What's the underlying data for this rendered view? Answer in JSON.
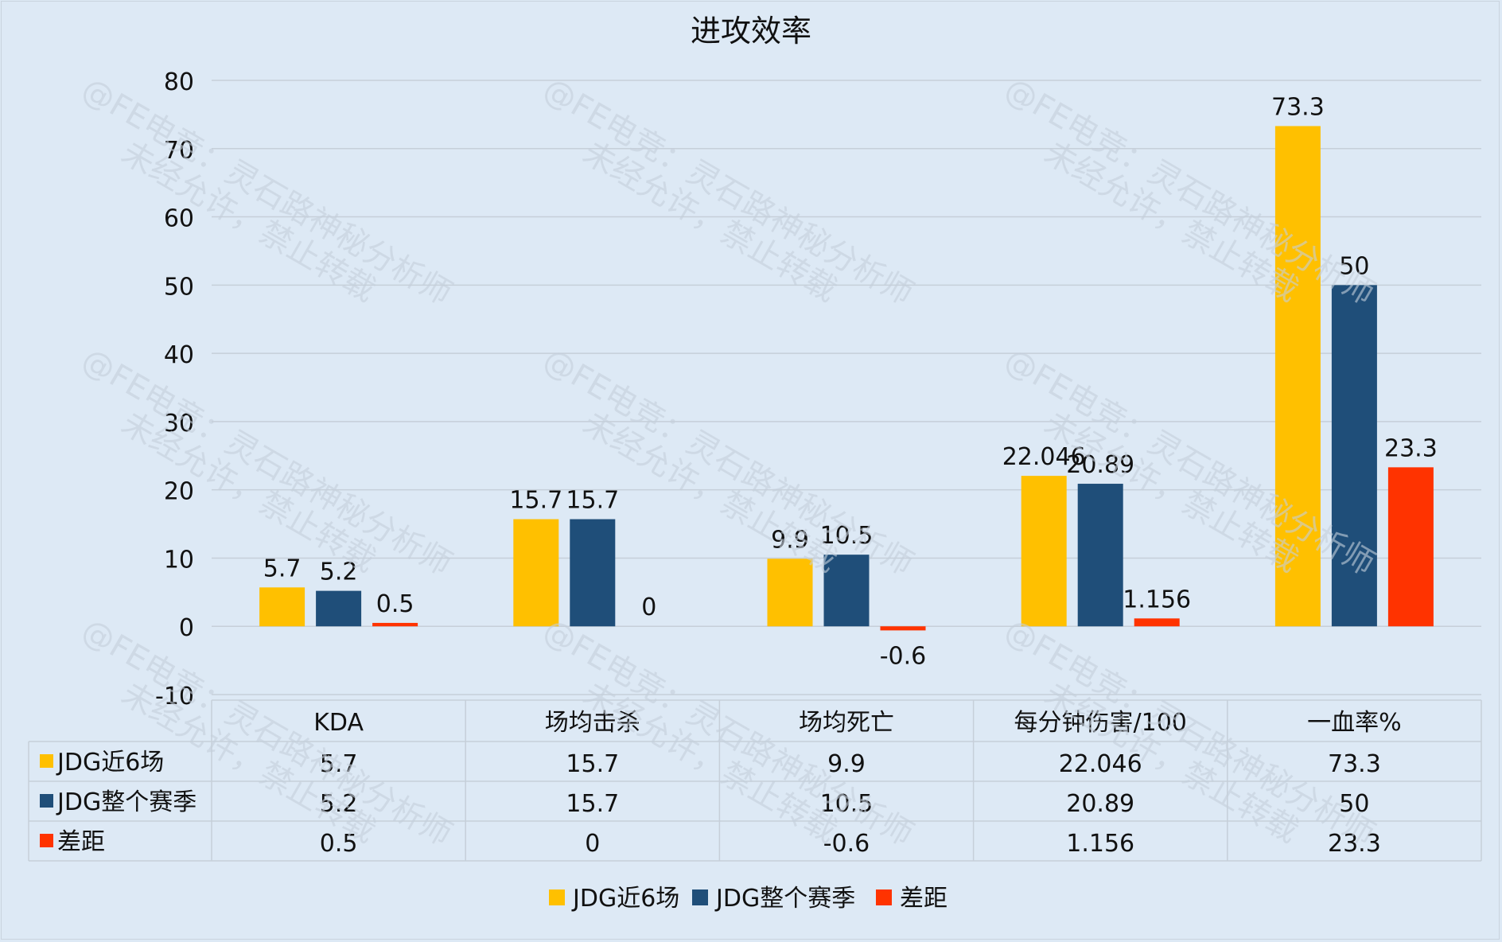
{
  "chart_data": {
    "type": "bar",
    "title": "进攻效率",
    "categories": [
      "KDA",
      "场均击杀",
      "场均死亡",
      "每分钟伤害/100",
      "一血率%"
    ],
    "series": [
      {
        "name": "JDG近6场",
        "values": [
          5.7,
          15.7,
          9.9,
          22.046,
          73.3
        ],
        "labels": [
          "5.7",
          "15.7",
          "9.9",
          "22.046",
          "73.3"
        ],
        "color": "#ffc000"
      },
      {
        "name": "JDG整个赛季",
        "values": [
          5.2,
          15.7,
          10.5,
          20.89,
          50
        ],
        "labels": [
          "5.2",
          "15.7",
          "10.5",
          "20.89",
          "50"
        ],
        "color": "#1f4e79"
      },
      {
        "name": "差距",
        "values": [
          0.5,
          0,
          -0.6,
          1.156,
          23.3
        ],
        "labels": [
          "0.5",
          "0",
          "-0.6",
          "1.156",
          "23.3"
        ],
        "color": "#ff3300"
      }
    ],
    "ylim": [
      -10,
      80
    ],
    "yticks": [
      "-10",
      "0",
      "10",
      "20",
      "30",
      "40",
      "50",
      "60",
      "70",
      "80"
    ],
    "grid": true,
    "legend": "bottom",
    "data_table": true
  },
  "watermark": {
    "line1": "@FE电竞：灵石路神秘分析师",
    "line2": "未经允许，禁止转载"
  }
}
